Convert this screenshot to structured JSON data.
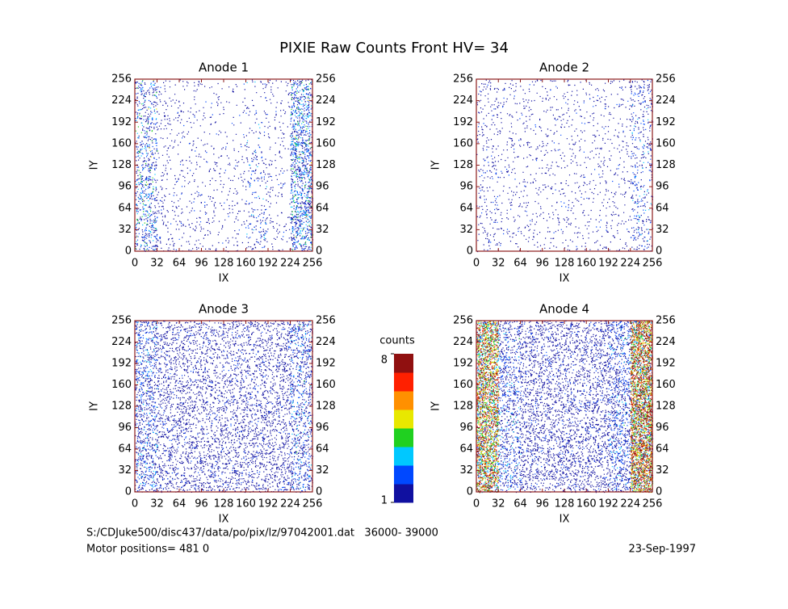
{
  "chart_data": {
    "type": "scatter",
    "title": "PIXIE Raw Counts Front HV= 34",
    "panels": [
      {
        "title": "Anode 1",
        "xlabel": "IX",
        "ylabel": "IY",
        "xlim": [
          0,
          256
        ],
        "ylim": [
          0,
          256
        ],
        "xticks": [
          0,
          32,
          64,
          96,
          128,
          160,
          192,
          224,
          256
        ],
        "yticks": [
          0,
          32,
          64,
          96,
          128,
          160,
          192,
          224,
          256
        ],
        "density": [
          [
            0.1,
            0.03,
            0.02,
            0.02,
            0.02,
            0.05,
            0.02,
            0.14
          ],
          [
            0.1,
            0.03,
            0.03,
            0.02,
            0.02,
            0.05,
            0.02,
            0.16
          ],
          [
            0.09,
            0.03,
            0.02,
            0.02,
            0.02,
            0.02,
            0.02,
            0.15
          ],
          [
            0.1,
            0.02,
            0.02,
            0.02,
            0.02,
            0.04,
            0.02,
            0.16
          ],
          [
            0.09,
            0.02,
            0.02,
            0.02,
            0.02,
            0.04,
            0.02,
            0.16
          ],
          [
            0.07,
            0.02,
            0.02,
            0.01,
            0.01,
            0.02,
            0.02,
            0.14
          ],
          [
            0.08,
            0.03,
            0.02,
            0.02,
            0.01,
            0.02,
            0.02,
            0.13
          ],
          [
            0.08,
            0.02,
            0.02,
            0.01,
            0.01,
            0.02,
            0.02,
            0.12
          ]
        ],
        "level": [
          3,
          1,
          1,
          1,
          1,
          2,
          1,
          3
        ]
      },
      {
        "title": "Anode 2",
        "xlabel": "IX",
        "ylabel": "IY",
        "xlim": [
          0,
          256
        ],
        "ylim": [
          0,
          256
        ],
        "xticks": [
          0,
          32,
          64,
          96,
          128,
          160,
          192,
          224,
          256
        ],
        "yticks": [
          0,
          32,
          64,
          96,
          128,
          160,
          192,
          224,
          256
        ],
        "density": [
          [
            0.03,
            0.02,
            0.02,
            0.02,
            0.02,
            0.02,
            0.02,
            0.05
          ],
          [
            0.03,
            0.02,
            0.02,
            0.02,
            0.02,
            0.02,
            0.02,
            0.05
          ],
          [
            0.03,
            0.02,
            0.02,
            0.02,
            0.02,
            0.02,
            0.02,
            0.05
          ],
          [
            0.03,
            0.02,
            0.02,
            0.02,
            0.02,
            0.02,
            0.02,
            0.05
          ],
          [
            0.03,
            0.02,
            0.02,
            0.02,
            0.02,
            0.02,
            0.02,
            0.05
          ],
          [
            0.03,
            0.02,
            0.02,
            0.02,
            0.02,
            0.02,
            0.02,
            0.05
          ],
          [
            0.03,
            0.02,
            0.02,
            0.02,
            0.02,
            0.02,
            0.02,
            0.05
          ],
          [
            0.03,
            0.02,
            0.02,
            0.02,
            0.02,
            0.02,
            0.02,
            0.06
          ]
        ],
        "level": [
          1,
          1,
          1,
          1,
          1,
          1,
          1,
          2
        ]
      },
      {
        "title": "Anode 3",
        "xlabel": "IX",
        "ylabel": "IY",
        "xlim": [
          0,
          256
        ],
        "ylim": [
          0,
          256
        ],
        "xticks": [
          0,
          32,
          64,
          96,
          128,
          160,
          192,
          224,
          256
        ],
        "yticks": [
          0,
          32,
          64,
          96,
          128,
          160,
          192,
          224,
          256
        ],
        "density": [
          [
            0.12,
            0.08,
            0.08,
            0.08,
            0.08,
            0.08,
            0.08,
            0.11
          ],
          [
            0.11,
            0.08,
            0.08,
            0.08,
            0.08,
            0.08,
            0.08,
            0.1
          ],
          [
            0.11,
            0.08,
            0.08,
            0.08,
            0.08,
            0.08,
            0.08,
            0.1
          ],
          [
            0.11,
            0.08,
            0.08,
            0.07,
            0.07,
            0.08,
            0.08,
            0.1
          ],
          [
            0.11,
            0.08,
            0.08,
            0.07,
            0.07,
            0.08,
            0.08,
            0.1
          ],
          [
            0.11,
            0.08,
            0.07,
            0.07,
            0.07,
            0.07,
            0.08,
            0.1
          ],
          [
            0.11,
            0.08,
            0.07,
            0.07,
            0.07,
            0.07,
            0.08,
            0.11
          ],
          [
            0.12,
            0.08,
            0.08,
            0.07,
            0.07,
            0.08,
            0.08,
            0.12
          ]
        ],
        "level": [
          2,
          1,
          1,
          1,
          1,
          1,
          1,
          2
        ]
      },
      {
        "title": "Anode 4",
        "xlabel": "IX",
        "ylabel": "IY",
        "xlim": [
          0,
          256
        ],
        "ylim": [
          0,
          256
        ],
        "xticks": [
          0,
          32,
          64,
          96,
          128,
          160,
          192,
          224,
          256
        ],
        "yticks": [
          0,
          32,
          64,
          96,
          128,
          160,
          192,
          224,
          256
        ],
        "density": [
          [
            0.35,
            0.1,
            0.09,
            0.09,
            0.09,
            0.09,
            0.12,
            0.4
          ],
          [
            0.35,
            0.1,
            0.09,
            0.09,
            0.09,
            0.09,
            0.12,
            0.4
          ],
          [
            0.33,
            0.1,
            0.09,
            0.09,
            0.09,
            0.09,
            0.12,
            0.4
          ],
          [
            0.33,
            0.1,
            0.09,
            0.08,
            0.08,
            0.09,
            0.12,
            0.42
          ],
          [
            0.33,
            0.1,
            0.09,
            0.08,
            0.08,
            0.09,
            0.12,
            0.4
          ],
          [
            0.33,
            0.1,
            0.09,
            0.08,
            0.08,
            0.09,
            0.11,
            0.38
          ],
          [
            0.33,
            0.1,
            0.09,
            0.08,
            0.08,
            0.09,
            0.11,
            0.38
          ],
          [
            0.35,
            0.1,
            0.09,
            0.09,
            0.09,
            0.09,
            0.12,
            0.4
          ]
        ],
        "level": [
          7,
          2,
          1,
          1,
          1,
          1,
          2,
          8
        ]
      }
    ],
    "colorbar": {
      "label": "counts",
      "range": [
        1,
        8
      ],
      "ticks": [
        1,
        8
      ],
      "colors": [
        "#1010a0",
        "#0048ff",
        "#00c8ff",
        "#20d020",
        "#e8e800",
        "#ff9000",
        "#ff2000",
        "#901010"
      ]
    },
    "file_info": "S:/CDJuke500/disc437/data/po/pix/lz/97042001.dat   36000- 39000",
    "motor_info": "Motor positions= 481 0",
    "date": "23-Sep-1997"
  }
}
